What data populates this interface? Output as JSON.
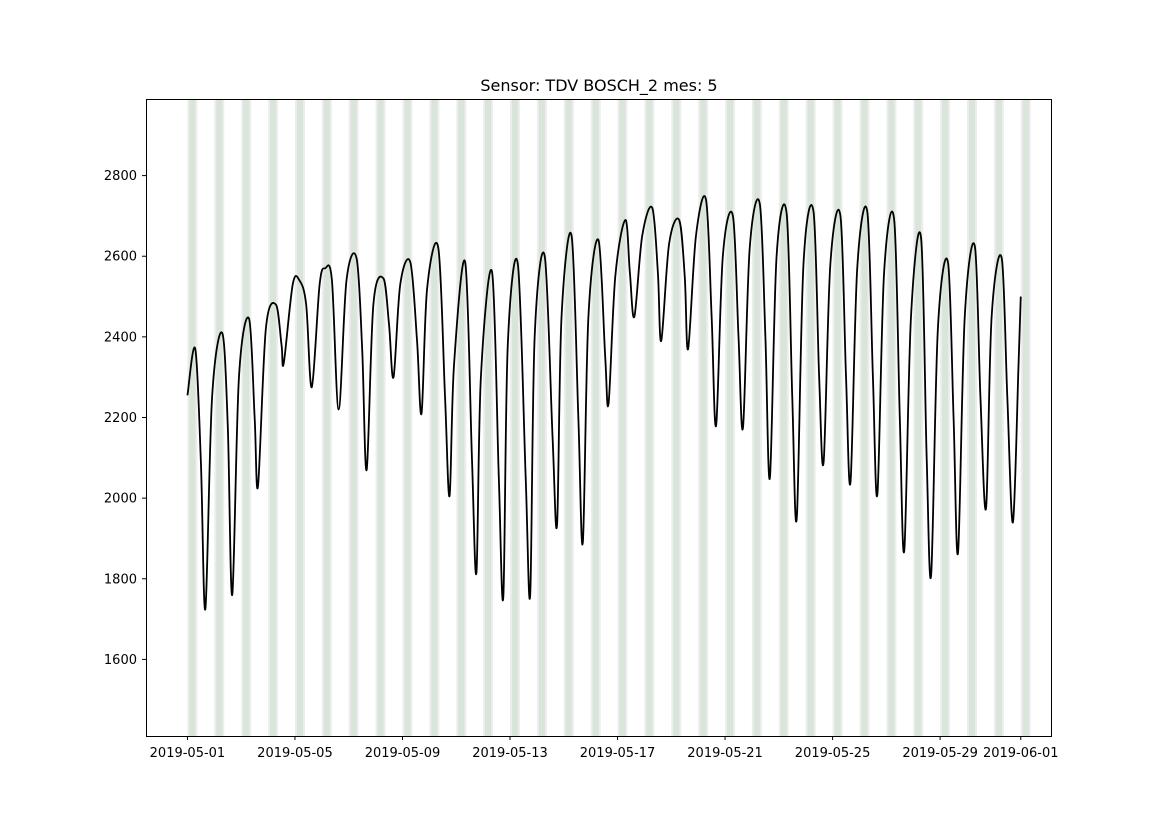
{
  "chart_data": {
    "type": "line",
    "title": "Sensor: TDV BOSCH_2 mes: 5",
    "xlabel": "",
    "ylabel": "",
    "x_start": "2019-05-01",
    "x_end": "2019-06-01",
    "xlim": [
      "2019-04-29T11:00",
      "2019-06-02T03:00"
    ],
    "ylim": [
      1410,
      2990
    ],
    "x_ticks": [
      "2019-05-01",
      "2019-05-05",
      "2019-05-09",
      "2019-05-13",
      "2019-05-17",
      "2019-05-21",
      "2019-05-25",
      "2019-05-29",
      "2019-06-01"
    ],
    "y_ticks": [
      1600,
      1800,
      2000,
      2200,
      2400,
      2600,
      2800
    ],
    "grid": false,
    "series": [
      {
        "color": "#000000",
        "points": [
          [
            "2019-05-01T00:00",
            2255
          ],
          [
            "2019-05-01T07:00",
            2370
          ],
          [
            "2019-05-01T12:00",
            2090
          ],
          [
            "2019-05-01T16:00",
            1725
          ],
          [
            "2019-05-01T22:00",
            2250
          ],
          [
            "2019-05-02T07:00",
            2410
          ],
          [
            "2019-05-02T12:00",
            2180
          ],
          [
            "2019-05-02T16:00",
            1760
          ],
          [
            "2019-05-02T22:00",
            2300
          ],
          [
            "2019-05-03T07:00",
            2445
          ],
          [
            "2019-05-03T12:00",
            2200
          ],
          [
            "2019-05-03T15:00",
            2030
          ],
          [
            "2019-05-03T22:00",
            2420
          ],
          [
            "2019-05-04T07:00",
            2480
          ],
          [
            "2019-05-04T12:00",
            2380
          ],
          [
            "2019-05-04T14:00",
            2335
          ],
          [
            "2019-05-04T22:00",
            2530
          ],
          [
            "2019-05-05T04:00",
            2540
          ],
          [
            "2019-05-05T10:00",
            2480
          ],
          [
            "2019-05-05T15:00",
            2275
          ],
          [
            "2019-05-05T22:00",
            2530
          ],
          [
            "2019-05-06T03:00",
            2570
          ],
          [
            "2019-05-06T09:00",
            2540
          ],
          [
            "2019-05-06T15:00",
            2220
          ],
          [
            "2019-05-06T22:00",
            2540
          ],
          [
            "2019-05-07T07:00",
            2595
          ],
          [
            "2019-05-07T12:00",
            2370
          ],
          [
            "2019-05-07T16:00",
            2070
          ],
          [
            "2019-05-07T22:00",
            2480
          ],
          [
            "2019-05-08T07:00",
            2545
          ],
          [
            "2019-05-08T12:00",
            2430
          ],
          [
            "2019-05-08T16:00",
            2300
          ],
          [
            "2019-05-08T22:00",
            2530
          ],
          [
            "2019-05-09T07:00",
            2585
          ],
          [
            "2019-05-09T13:00",
            2390
          ],
          [
            "2019-05-09T17:00",
            2210
          ],
          [
            "2019-05-09T22:00",
            2520
          ],
          [
            "2019-05-10T08:00",
            2620
          ],
          [
            "2019-05-10T14:00",
            2250
          ],
          [
            "2019-05-10T18:00",
            2005
          ],
          [
            "2019-05-10T22:00",
            2330
          ],
          [
            "2019-05-11T08:00",
            2585
          ],
          [
            "2019-05-11T14:00",
            2100
          ],
          [
            "2019-05-11T18:00",
            1815
          ],
          [
            "2019-05-11T22:00",
            2300
          ],
          [
            "2019-05-12T08:00",
            2560
          ],
          [
            "2019-05-12T14:00",
            2050
          ],
          [
            "2019-05-12T18:00",
            1755
          ],
          [
            "2019-05-12T22:00",
            2380
          ],
          [
            "2019-05-13T07:00",
            2580
          ],
          [
            "2019-05-13T14:00",
            2050
          ],
          [
            "2019-05-13T18:00",
            1760
          ],
          [
            "2019-05-13T22:00",
            2400
          ],
          [
            "2019-05-14T07:00",
            2600
          ],
          [
            "2019-05-14T14:00",
            2150
          ],
          [
            "2019-05-14T18:00",
            1935
          ],
          [
            "2019-05-14T22:00",
            2450
          ],
          [
            "2019-05-15T07:00",
            2650
          ],
          [
            "2019-05-15T13:00",
            2200
          ],
          [
            "2019-05-15T17:00",
            1890
          ],
          [
            "2019-05-15T22:00",
            2450
          ],
          [
            "2019-05-16T07:00",
            2640
          ],
          [
            "2019-05-16T13:00",
            2350
          ],
          [
            "2019-05-16T16:00",
            2235
          ],
          [
            "2019-05-16T22:00",
            2550
          ],
          [
            "2019-05-17T07:00",
            2690
          ],
          [
            "2019-05-17T11:00",
            2560
          ],
          [
            "2019-05-17T15:00",
            2450
          ],
          [
            "2019-05-17T22:00",
            2650
          ],
          [
            "2019-05-18T07:00",
            2720
          ],
          [
            "2019-05-18T12:00",
            2560
          ],
          [
            "2019-05-18T15:00",
            2390
          ],
          [
            "2019-05-18T22:00",
            2630
          ],
          [
            "2019-05-19T07:00",
            2690
          ],
          [
            "2019-05-19T12:00",
            2550
          ],
          [
            "2019-05-19T15:00",
            2370
          ],
          [
            "2019-05-19T22:00",
            2650
          ],
          [
            "2019-05-20T07:00",
            2740
          ],
          [
            "2019-05-20T12:00",
            2450
          ],
          [
            "2019-05-20T16:00",
            2180
          ],
          [
            "2019-05-20T22:00",
            2600
          ],
          [
            "2019-05-21T07:00",
            2700
          ],
          [
            "2019-05-21T12:00",
            2400
          ],
          [
            "2019-05-21T16:00",
            2175
          ],
          [
            "2019-05-21T22:00",
            2620
          ],
          [
            "2019-05-22T07:00",
            2730
          ],
          [
            "2019-05-22T12:00",
            2400
          ],
          [
            "2019-05-22T16:00",
            2050
          ],
          [
            "2019-05-22T22:00",
            2600
          ],
          [
            "2019-05-23T07:00",
            2705
          ],
          [
            "2019-05-23T12:00",
            2250
          ],
          [
            "2019-05-23T16:00",
            1950
          ],
          [
            "2019-05-23T22:00",
            2580
          ],
          [
            "2019-05-24T07:00",
            2710
          ],
          [
            "2019-05-24T12:00",
            2300
          ],
          [
            "2019-05-24T16:00",
            2090
          ],
          [
            "2019-05-24T22:00",
            2580
          ],
          [
            "2019-05-25T07:00",
            2700
          ],
          [
            "2019-05-25T12:00",
            2300
          ],
          [
            "2019-05-25T16:00",
            2040
          ],
          [
            "2019-05-25T22:00",
            2570
          ],
          [
            "2019-05-26T07:00",
            2710
          ],
          [
            "2019-05-26T12:00",
            2300
          ],
          [
            "2019-05-26T16:00",
            2010
          ],
          [
            "2019-05-26T22:00",
            2560
          ],
          [
            "2019-05-27T07:00",
            2690
          ],
          [
            "2019-05-27T12:00",
            2200
          ],
          [
            "2019-05-27T16:00",
            1870
          ],
          [
            "2019-05-27T22:00",
            2450
          ],
          [
            "2019-05-28T07:00",
            2645
          ],
          [
            "2019-05-28T12:00",
            2100
          ],
          [
            "2019-05-28T16:00",
            1810
          ],
          [
            "2019-05-28T22:00",
            2420
          ],
          [
            "2019-05-29T07:00",
            2585
          ],
          [
            "2019-05-29T12:00",
            2200
          ],
          [
            "2019-05-29T16:00",
            1865
          ],
          [
            "2019-05-29T22:00",
            2450
          ],
          [
            "2019-05-30T07:00",
            2625
          ],
          [
            "2019-05-30T12:00",
            2250
          ],
          [
            "2019-05-30T17:00",
            1975
          ],
          [
            "2019-05-30T22:00",
            2450
          ],
          [
            "2019-05-31T07:00",
            2595
          ],
          [
            "2019-05-31T12:00",
            2250
          ],
          [
            "2019-05-31T17:00",
            1940
          ],
          [
            "2019-05-31T22:00",
            2330
          ],
          [
            "2019-06-01T00:00",
            2500
          ]
        ]
      }
    ],
    "shaded_bands": {
      "description_colors": [
        "#d3e3d3",
        "#e6e6e6"
      ],
      "days": "each day 2019-05-01 through 2019-06-01"
    }
  }
}
